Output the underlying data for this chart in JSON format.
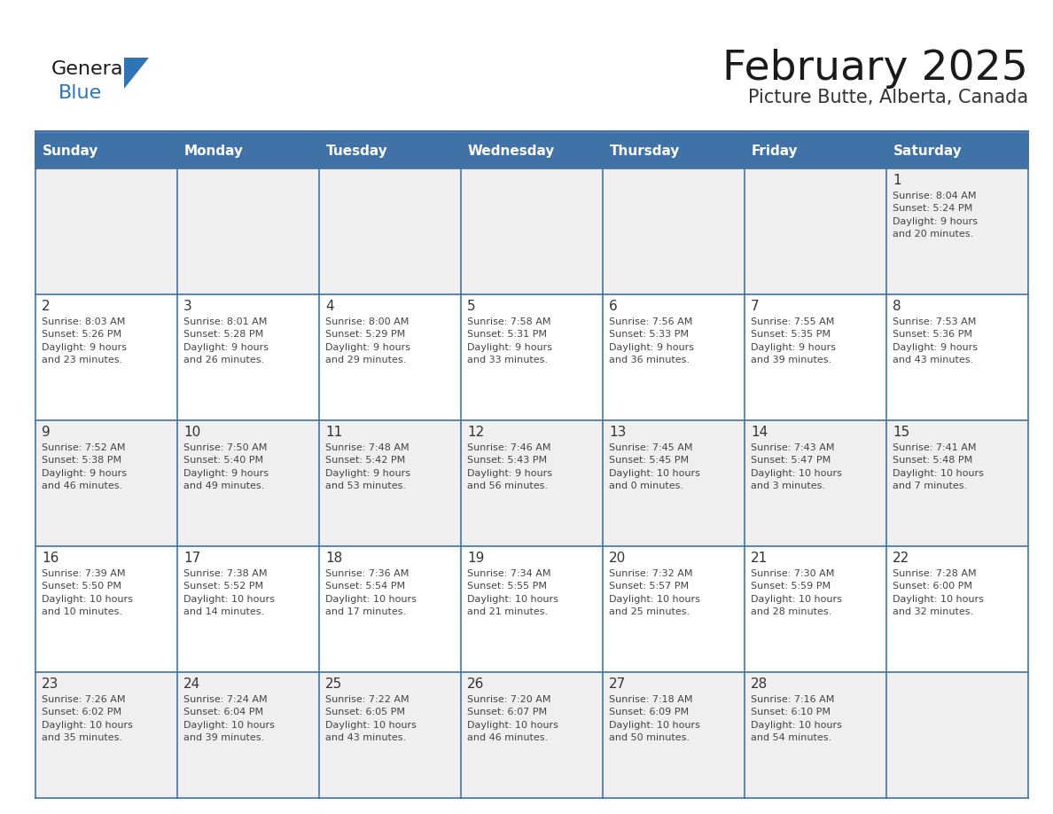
{
  "title": "February 2025",
  "subtitle": "Picture Butte, Alberta, Canada",
  "days_of_week": [
    "Sunday",
    "Monday",
    "Tuesday",
    "Wednesday",
    "Thursday",
    "Friday",
    "Saturday"
  ],
  "header_bg": "#4072A8",
  "header_text_color": "#FFFFFF",
  "cell_bg_light": "#EFEFEF",
  "cell_bg_white": "#FFFFFF",
  "border_color": "#4072A8",
  "day_number_color": "#333333",
  "info_text_color": "#444444",
  "logo_general_color": "#1a1a1a",
  "logo_blue_color": "#2E75B6",
  "title_color": "#1a1a1a",
  "subtitle_color": "#333333",
  "calendar_data": [
    [
      {
        "day": null,
        "info": null
      },
      {
        "day": null,
        "info": null
      },
      {
        "day": null,
        "info": null
      },
      {
        "day": null,
        "info": null
      },
      {
        "day": null,
        "info": null
      },
      {
        "day": null,
        "info": null
      },
      {
        "day": 1,
        "info": "Sunrise: 8:04 AM\nSunset: 5:24 PM\nDaylight: 9 hours\nand 20 minutes."
      }
    ],
    [
      {
        "day": 2,
        "info": "Sunrise: 8:03 AM\nSunset: 5:26 PM\nDaylight: 9 hours\nand 23 minutes."
      },
      {
        "day": 3,
        "info": "Sunrise: 8:01 AM\nSunset: 5:28 PM\nDaylight: 9 hours\nand 26 minutes."
      },
      {
        "day": 4,
        "info": "Sunrise: 8:00 AM\nSunset: 5:29 PM\nDaylight: 9 hours\nand 29 minutes."
      },
      {
        "day": 5,
        "info": "Sunrise: 7:58 AM\nSunset: 5:31 PM\nDaylight: 9 hours\nand 33 minutes."
      },
      {
        "day": 6,
        "info": "Sunrise: 7:56 AM\nSunset: 5:33 PM\nDaylight: 9 hours\nand 36 minutes."
      },
      {
        "day": 7,
        "info": "Sunrise: 7:55 AM\nSunset: 5:35 PM\nDaylight: 9 hours\nand 39 minutes."
      },
      {
        "day": 8,
        "info": "Sunrise: 7:53 AM\nSunset: 5:36 PM\nDaylight: 9 hours\nand 43 minutes."
      }
    ],
    [
      {
        "day": 9,
        "info": "Sunrise: 7:52 AM\nSunset: 5:38 PM\nDaylight: 9 hours\nand 46 minutes."
      },
      {
        "day": 10,
        "info": "Sunrise: 7:50 AM\nSunset: 5:40 PM\nDaylight: 9 hours\nand 49 minutes."
      },
      {
        "day": 11,
        "info": "Sunrise: 7:48 AM\nSunset: 5:42 PM\nDaylight: 9 hours\nand 53 minutes."
      },
      {
        "day": 12,
        "info": "Sunrise: 7:46 AM\nSunset: 5:43 PM\nDaylight: 9 hours\nand 56 minutes."
      },
      {
        "day": 13,
        "info": "Sunrise: 7:45 AM\nSunset: 5:45 PM\nDaylight: 10 hours\nand 0 minutes."
      },
      {
        "day": 14,
        "info": "Sunrise: 7:43 AM\nSunset: 5:47 PM\nDaylight: 10 hours\nand 3 minutes."
      },
      {
        "day": 15,
        "info": "Sunrise: 7:41 AM\nSunset: 5:48 PM\nDaylight: 10 hours\nand 7 minutes."
      }
    ],
    [
      {
        "day": 16,
        "info": "Sunrise: 7:39 AM\nSunset: 5:50 PM\nDaylight: 10 hours\nand 10 minutes."
      },
      {
        "day": 17,
        "info": "Sunrise: 7:38 AM\nSunset: 5:52 PM\nDaylight: 10 hours\nand 14 minutes."
      },
      {
        "day": 18,
        "info": "Sunrise: 7:36 AM\nSunset: 5:54 PM\nDaylight: 10 hours\nand 17 minutes."
      },
      {
        "day": 19,
        "info": "Sunrise: 7:34 AM\nSunset: 5:55 PM\nDaylight: 10 hours\nand 21 minutes."
      },
      {
        "day": 20,
        "info": "Sunrise: 7:32 AM\nSunset: 5:57 PM\nDaylight: 10 hours\nand 25 minutes."
      },
      {
        "day": 21,
        "info": "Sunrise: 7:30 AM\nSunset: 5:59 PM\nDaylight: 10 hours\nand 28 minutes."
      },
      {
        "day": 22,
        "info": "Sunrise: 7:28 AM\nSunset: 6:00 PM\nDaylight: 10 hours\nand 32 minutes."
      }
    ],
    [
      {
        "day": 23,
        "info": "Sunrise: 7:26 AM\nSunset: 6:02 PM\nDaylight: 10 hours\nand 35 minutes."
      },
      {
        "day": 24,
        "info": "Sunrise: 7:24 AM\nSunset: 6:04 PM\nDaylight: 10 hours\nand 39 minutes."
      },
      {
        "day": 25,
        "info": "Sunrise: 7:22 AM\nSunset: 6:05 PM\nDaylight: 10 hours\nand 43 minutes."
      },
      {
        "day": 26,
        "info": "Sunrise: 7:20 AM\nSunset: 6:07 PM\nDaylight: 10 hours\nand 46 minutes."
      },
      {
        "day": 27,
        "info": "Sunrise: 7:18 AM\nSunset: 6:09 PM\nDaylight: 10 hours\nand 50 minutes."
      },
      {
        "day": 28,
        "info": "Sunrise: 7:16 AM\nSunset: 6:10 PM\nDaylight: 10 hours\nand 54 minutes."
      },
      {
        "day": null,
        "info": null
      }
    ]
  ]
}
